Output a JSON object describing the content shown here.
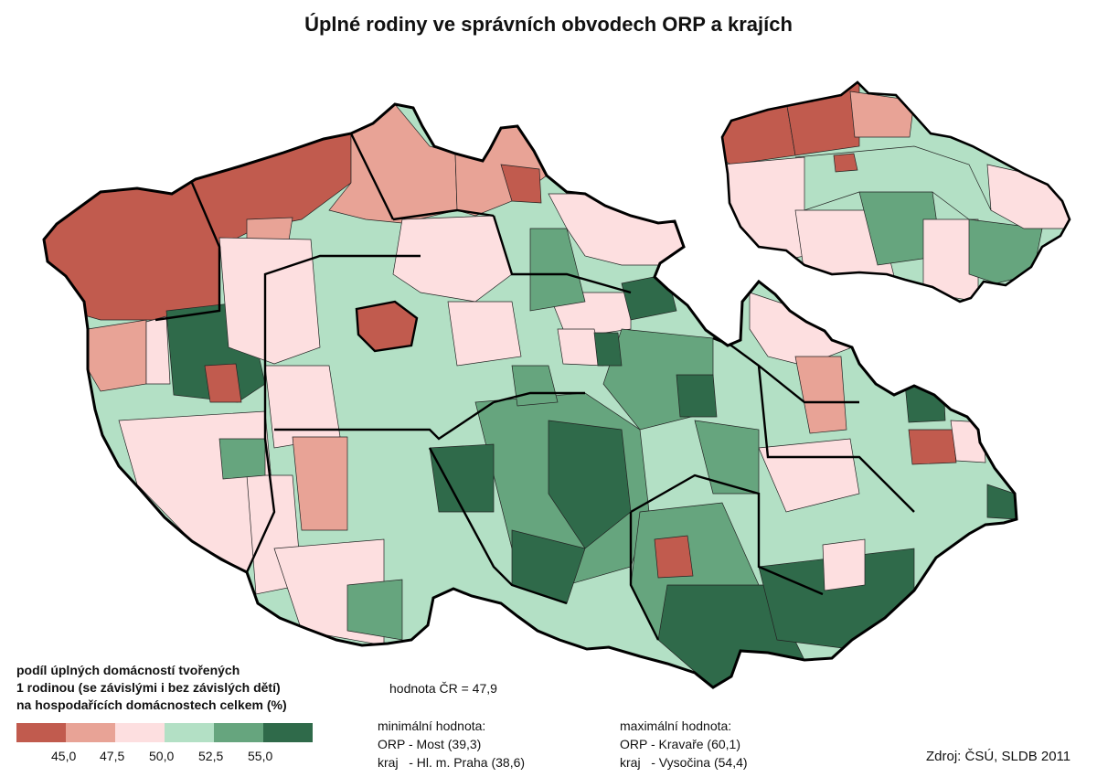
{
  "title": "Úplné rodiny ve správních obvodech ORP a krajích",
  "legend": {
    "title_lines": [
      "podíl úplných domácností tvořených",
      "1 rodinou (se závislými i bez závislých dětí)",
      "na hospodařících domácnostech celkem (%)"
    ],
    "colors": [
      "#c15b4e",
      "#e8a396",
      "#fddfe0",
      "#b3e0c5",
      "#66a57e",
      "#2f6a4a"
    ],
    "ticks": [
      "45,0",
      "47,5",
      "50,0",
      "52,5",
      "55,0"
    ]
  },
  "national_value": "hodnota ČR = 47,9",
  "minimum": {
    "label": "minimální hodnota:",
    "orp": "ORP - Most (39,3)",
    "kraj": "kraj   - Hl. m. Praha (38,6)"
  },
  "maximum": {
    "label": "maximální hodnota:",
    "orp": "ORP - Kravaře (60,1)",
    "kraj": "kraj   - Vysočina (54,4)"
  },
  "source": "Zdroj: ČSÚ, SLDB 2011"
}
